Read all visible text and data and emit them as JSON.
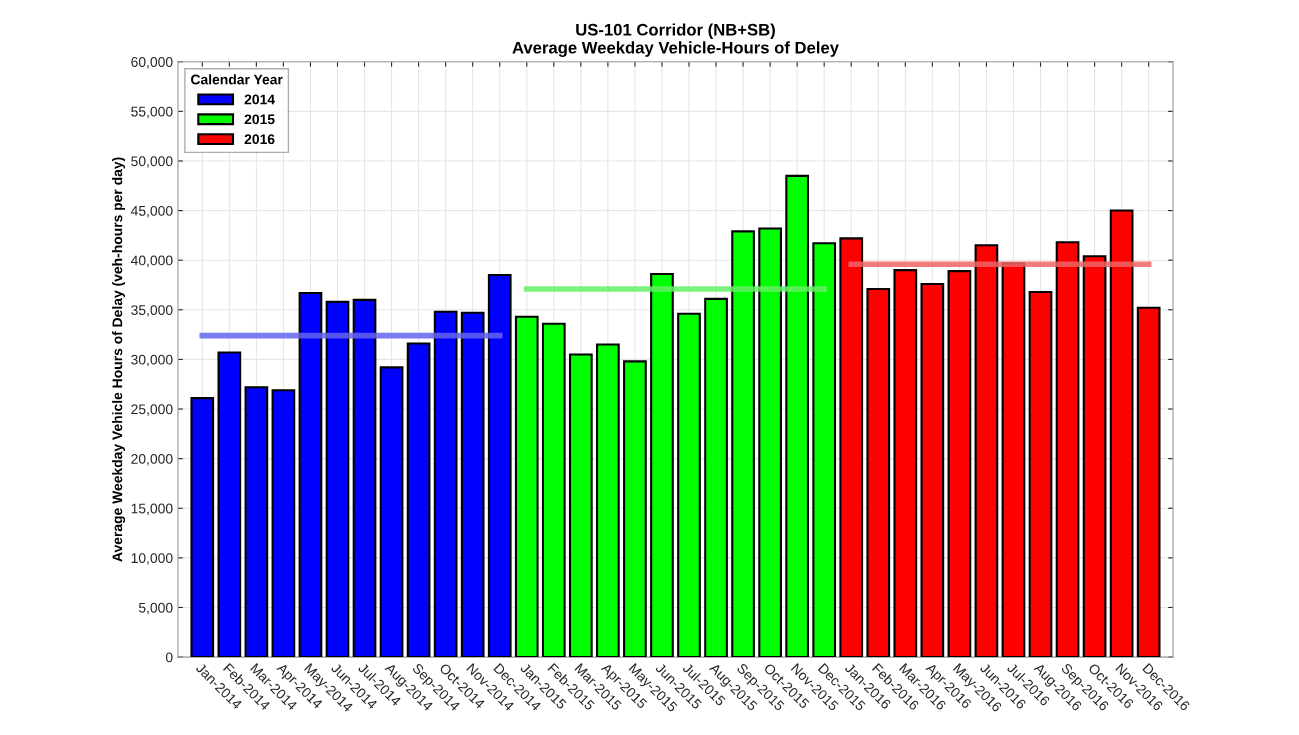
{
  "chart_data": {
    "type": "bar",
    "title": "US-101 Corridor (NB+SB)\nAverage Weekday Vehicle-Hours of Deley",
    "ylabel": "Average Weekday Vehicle Hours of Delay (veh-hours per day)",
    "legend_title": "Calendar Year",
    "categories": [
      "Jan-2014",
      "Feb-2014",
      "Mar-2014",
      "Apr-2014",
      "May-2014",
      "Jun-2014",
      "Jul-2014",
      "Aug-2014",
      "Sep-2014",
      "Oct-2014",
      "Nov-2014",
      "Dec-2014",
      "Jan-2015",
      "Feb-2015",
      "Mar-2015",
      "Apr-2015",
      "May-2015",
      "Jun-2015",
      "Jul-2015",
      "Aug-2015",
      "Sep-2015",
      "Oct-2015",
      "Nov-2015",
      "Dec-2015",
      "Jan-2016",
      "Feb-2016",
      "Mar-2016",
      "Apr-2016",
      "May-2016",
      "Jun-2016",
      "Jul-2016",
      "Aug-2016",
      "Sep-2016",
      "Oct-2016",
      "Nov-2016",
      "Dec-2016"
    ],
    "series": [
      {
        "name": "2014",
        "color": "#0000ff",
        "values": [
          26100,
          30700,
          27200,
          26900,
          36700,
          35800,
          36000,
          29200,
          31600,
          34800,
          34700,
          38500,
          null,
          null,
          null,
          null,
          null,
          null,
          null,
          null,
          null,
          null,
          null,
          null,
          null,
          null,
          null,
          null,
          null,
          null,
          null,
          null,
          null,
          null,
          null,
          null
        ]
      },
      {
        "name": "2015",
        "color": "#00ff00",
        "values": [
          null,
          null,
          null,
          null,
          null,
          null,
          null,
          null,
          null,
          null,
          null,
          null,
          34300,
          33600,
          30500,
          31500,
          29800,
          38600,
          34600,
          36100,
          42900,
          43200,
          48500,
          41700,
          null,
          null,
          null,
          null,
          null,
          null,
          null,
          null,
          null,
          null,
          null,
          null
        ]
      },
      {
        "name": "2016",
        "color": "#ff0000",
        "values": [
          null,
          null,
          null,
          null,
          null,
          null,
          null,
          null,
          null,
          null,
          null,
          null,
          null,
          null,
          null,
          null,
          null,
          null,
          null,
          null,
          null,
          null,
          null,
          null,
          42200,
          37100,
          39000,
          37600,
          38900,
          41500,
          39700,
          36800,
          41800,
          40400,
          45000,
          35200
        ]
      },
      {
        "type": "line",
        "color": "#6464f0",
        "values": [
          32400,
          32400,
          32400,
          32400,
          32400,
          32400,
          32400,
          32400,
          32400,
          32400,
          32400,
          32400,
          null,
          null,
          null,
          null,
          null,
          null,
          null,
          null,
          null,
          null,
          null,
          null,
          null,
          null,
          null,
          null,
          null,
          null,
          null,
          null,
          null,
          null,
          null,
          null
        ]
      },
      {
        "type": "line",
        "color": "#66ee66",
        "values": [
          null,
          null,
          null,
          null,
          null,
          null,
          null,
          null,
          null,
          null,
          null,
          null,
          37100,
          37100,
          37100,
          37100,
          37100,
          37100,
          37100,
          37100,
          37100,
          37100,
          37100,
          37100,
          null,
          null,
          null,
          null,
          null,
          null,
          null,
          null,
          null,
          null,
          null,
          null
        ]
      },
      {
        "type": "line",
        "color": "#f06464",
        "values": [
          null,
          null,
          null,
          null,
          null,
          null,
          null,
          null,
          null,
          null,
          null,
          null,
          null,
          null,
          null,
          null,
          null,
          null,
          null,
          null,
          null,
          null,
          null,
          null,
          39600,
          39600,
          39600,
          39600,
          39600,
          39600,
          39600,
          39600,
          39600,
          39600,
          39600,
          39600
        ]
      }
    ],
    "ylim": [
      0,
      60000
    ],
    "yticks": [
      {
        "value": 0,
        "label": "0"
      },
      {
        "value": 5000,
        "label": "5,000"
      },
      {
        "value": 10000,
        "label": "10,000"
      },
      {
        "value": 15000,
        "label": "15,000"
      },
      {
        "value": 20000,
        "label": "20,000"
      },
      {
        "value": 25000,
        "label": "25,000"
      },
      {
        "value": 30000,
        "label": "30,000"
      },
      {
        "value": 35000,
        "label": "35,000"
      },
      {
        "value": 40000,
        "label": "40,000"
      },
      {
        "value": 45000,
        "label": "45,000"
      },
      {
        "value": 50000,
        "label": "50,000"
      },
      {
        "value": 55000,
        "label": "55,000"
      },
      {
        "value": 60000,
        "label": "60,000"
      }
    ],
    "grid": true,
    "legend": "top left"
  }
}
